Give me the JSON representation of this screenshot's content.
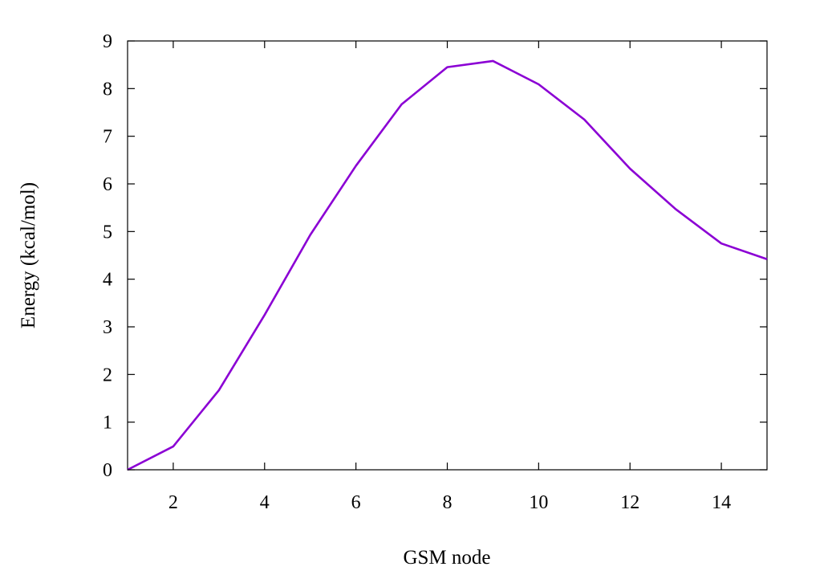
{
  "chart_data": {
    "type": "line",
    "title": "",
    "xlabel": "GSM node",
    "ylabel": "Energy (kcal/mol)",
    "xlim": [
      1,
      15
    ],
    "ylim": [
      0,
      9
    ],
    "xticks": [
      2,
      4,
      6,
      8,
      10,
      12,
      14
    ],
    "xtick_labels": [
      "2",
      "4",
      "6",
      "8",
      "10",
      "12",
      "14"
    ],
    "yticks": [
      0,
      1,
      2,
      3,
      4,
      5,
      6,
      7,
      8,
      9
    ],
    "ytick_labels": [
      "0",
      "1",
      "2",
      "3",
      "4",
      "5",
      "6",
      "7",
      "8",
      "9"
    ],
    "grid": false,
    "legend": "none",
    "series": [
      {
        "color": "#8b00d4",
        "x": [
          1,
          2,
          3,
          4,
          5,
          6,
          7,
          8,
          9,
          10,
          11,
          12,
          13,
          14,
          15
        ],
        "y": [
          0.0,
          0.49,
          1.67,
          3.25,
          4.93,
          6.38,
          7.67,
          8.45,
          8.58,
          8.09,
          7.35,
          6.32,
          5.47,
          4.75,
          4.42
        ]
      }
    ]
  }
}
